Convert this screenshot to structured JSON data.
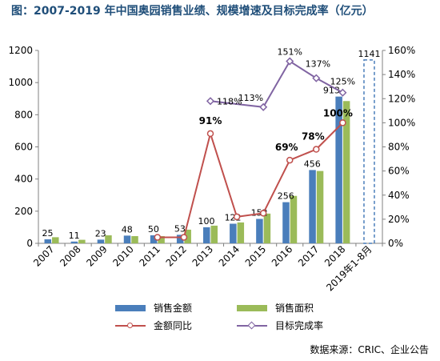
{
  "title": "图：2007-2019 年中国奥园销售业绩、规模增速及目标完成率（亿元）",
  "source": "数据来源：CRIC、企业公告",
  "chart_data": {
    "type": "bar",
    "categories": [
      "2007",
      "2008",
      "2009",
      "2010",
      "2011",
      "2012",
      "2013",
      "2014",
      "2015",
      "2016",
      "2017",
      "2018",
      "2019年1-8月"
    ],
    "series": [
      {
        "name": "销售金额",
        "kind": "bar",
        "axis": "left",
        "color": "#4a7ebb",
        "values": [
          25,
          11,
          23,
          48,
          50,
          53,
          100,
          122,
          152,
          256,
          456,
          913,
          1141
        ],
        "labels": [
          "25",
          "11",
          "23",
          "48",
          "50",
          "53",
          "100",
          "122",
          "152",
          "256",
          "456",
          "913",
          "1141"
        ],
        "note_last": "dashed outline bar for 2019年1-8月"
      },
      {
        "name": "销售面积",
        "kind": "bar",
        "axis": "left",
        "color": "#9bbb59",
        "values": [
          38,
          22,
          50,
          45,
          45,
          85,
          110,
          130,
          185,
          295,
          450,
          885,
          null
        ]
      },
      {
        "name": "金额同比",
        "kind": "line",
        "axis": "right",
        "color": "#c0504d",
        "marker": "circle",
        "values": [
          null,
          null,
          null,
          null,
          5,
          5,
          91,
          22,
          25,
          69,
          78,
          100,
          null
        ],
        "labels": [
          null,
          null,
          null,
          null,
          null,
          null,
          "91%",
          null,
          null,
          "69%",
          "78%",
          "100%",
          null
        ]
      },
      {
        "name": "目标完成率",
        "kind": "line",
        "axis": "right",
        "color": "#8064a2",
        "marker": "diamond",
        "values": [
          null,
          null,
          null,
          null,
          null,
          null,
          118,
          null,
          113,
          151,
          137,
          125,
          null
        ],
        "labels": [
          null,
          null,
          null,
          null,
          null,
          null,
          "118%",
          null,
          "113%",
          "151%",
          "137%",
          "125%",
          null
        ]
      }
    ],
    "yaxis_left": {
      "min": 0,
      "max": 1200,
      "ticks": [
        0,
        200,
        400,
        600,
        800,
        1000,
        1200
      ]
    },
    "yaxis_right": {
      "min": 0,
      "max": 160,
      "ticks": [
        0,
        20,
        40,
        60,
        80,
        100,
        120,
        140,
        160
      ],
      "suffix": "%"
    },
    "grid": false,
    "legend_position": "bottom",
    "extra_labels": [
      {
        "text": "113%",
        "series": "目标完成率",
        "category": "2014"
      }
    ]
  }
}
